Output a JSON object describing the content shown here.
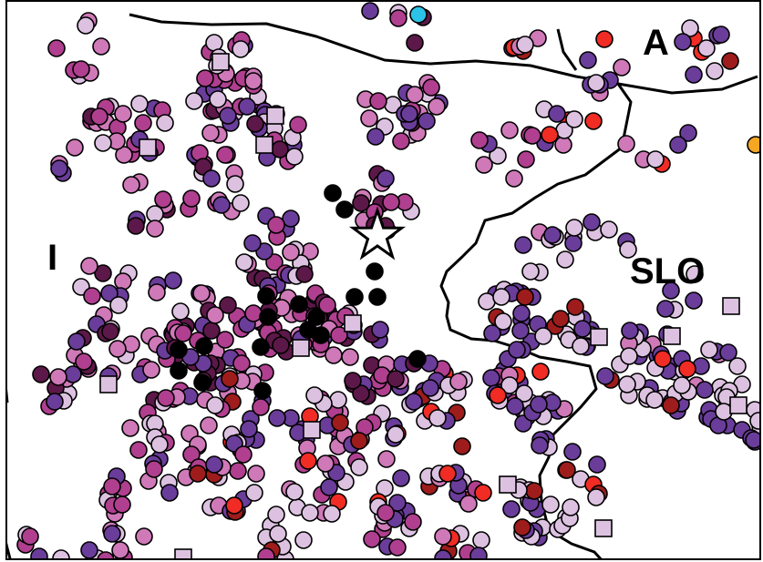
{
  "map": {
    "country_labels": {
      "italy": "I",
      "austria": "A",
      "slovenia": "SLO"
    },
    "colors": {
      "black": "#000000",
      "dark_purple": "#5c1848",
      "violet": "#6a3d9a",
      "magenta": "#b03f8f",
      "pink": "#cf79b8",
      "lilac": "#dcc2e0",
      "dark_red": "#9e1c1c",
      "red": "#f02c24",
      "orange": "#f5a623",
      "cyan": "#2bc4e8"
    },
    "legend_note": "",
    "epicenter_symbol": "star"
  }
}
